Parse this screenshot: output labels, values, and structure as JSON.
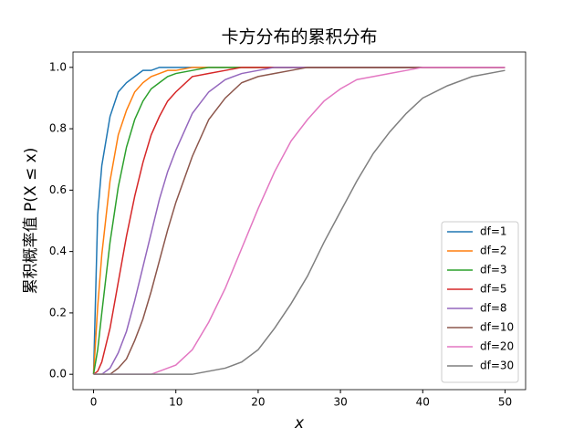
{
  "chart_data": {
    "type": "line",
    "title": "卡方分布的累积分布",
    "x_label": "x",
    "y_label": "累积概率值 P(X ≤ x)",
    "x": [
      0,
      0.5,
      1,
      2,
      3,
      4,
      5,
      6,
      7,
      8,
      9,
      10,
      12,
      14,
      16,
      18,
      20,
      22,
      24,
      26,
      28,
      30,
      32,
      34,
      36,
      38,
      40,
      43,
      46,
      50
    ],
    "series": [
      {
        "name": "df=1",
        "color": "#1f77b4",
        "values": [
          0,
          0.52,
          0.68,
          0.84,
          0.92,
          0.95,
          0.97,
          0.99,
          0.99,
          1.0,
          1.0,
          1.0,
          1.0,
          1.0,
          1.0,
          1.0,
          1.0,
          1.0,
          1.0,
          1.0,
          1.0,
          1.0,
          1.0,
          1.0,
          1.0,
          1.0,
          1.0,
          1.0,
          1.0,
          1.0
        ]
      },
      {
        "name": "df=2",
        "color": "#ff7f0e",
        "values": [
          0,
          0.22,
          0.39,
          0.63,
          0.78,
          0.86,
          0.92,
          0.95,
          0.97,
          0.98,
          0.99,
          0.99,
          1.0,
          1.0,
          1.0,
          1.0,
          1.0,
          1.0,
          1.0,
          1.0,
          1.0,
          1.0,
          1.0,
          1.0,
          1.0,
          1.0,
          1.0,
          1.0,
          1.0,
          1.0
        ]
      },
      {
        "name": "df=3",
        "color": "#2ca02c",
        "values": [
          0,
          0.08,
          0.2,
          0.43,
          0.61,
          0.74,
          0.83,
          0.89,
          0.93,
          0.95,
          0.97,
          0.98,
          0.99,
          1.0,
          1.0,
          1.0,
          1.0,
          1.0,
          1.0,
          1.0,
          1.0,
          1.0,
          1.0,
          1.0,
          1.0,
          1.0,
          1.0,
          1.0,
          1.0,
          1.0
        ]
      },
      {
        "name": "df=5",
        "color": "#d62728",
        "values": [
          0,
          0.01,
          0.04,
          0.15,
          0.3,
          0.45,
          0.58,
          0.69,
          0.78,
          0.84,
          0.89,
          0.92,
          0.97,
          0.98,
          0.99,
          1.0,
          1.0,
          1.0,
          1.0,
          1.0,
          1.0,
          1.0,
          1.0,
          1.0,
          1.0,
          1.0,
          1.0,
          1.0,
          1.0,
          1.0
        ]
      },
      {
        "name": "df=8",
        "color": "#9467bd",
        "values": [
          0,
          0,
          0,
          0.02,
          0.07,
          0.14,
          0.24,
          0.35,
          0.46,
          0.57,
          0.66,
          0.73,
          0.85,
          0.92,
          0.96,
          0.98,
          0.99,
          1.0,
          1.0,
          1.0,
          1.0,
          1.0,
          1.0,
          1.0,
          1.0,
          1.0,
          1.0,
          1.0,
          1.0,
          1.0
        ]
      },
      {
        "name": "df=10",
        "color": "#8c564b",
        "values": [
          0,
          0,
          0,
          0,
          0.02,
          0.05,
          0.11,
          0.18,
          0.27,
          0.37,
          0.47,
          0.56,
          0.71,
          0.83,
          0.9,
          0.95,
          0.97,
          0.98,
          0.99,
          1.0,
          1.0,
          1.0,
          1.0,
          1.0,
          1.0,
          1.0,
          1.0,
          1.0,
          1.0,
          1.0
        ]
      },
      {
        "name": "df=20",
        "color": "#e377c2",
        "values": [
          0,
          0,
          0,
          0,
          0,
          0,
          0,
          0,
          0,
          0.01,
          0.02,
          0.03,
          0.08,
          0.17,
          0.28,
          0.41,
          0.54,
          0.66,
          0.76,
          0.83,
          0.89,
          0.93,
          0.96,
          0.97,
          0.98,
          0.99,
          1.0,
          1.0,
          1.0,
          1.0
        ]
      },
      {
        "name": "df=30",
        "color": "#7f7f7f",
        "values": [
          0,
          0,
          0,
          0,
          0,
          0,
          0,
          0,
          0,
          0,
          0,
          0,
          0,
          0.01,
          0.02,
          0.04,
          0.08,
          0.15,
          0.23,
          0.32,
          0.43,
          0.53,
          0.63,
          0.72,
          0.79,
          0.85,
          0.9,
          0.94,
          0.97,
          0.99
        ]
      }
    ],
    "xlim": [
      -2.5,
      52.5
    ],
    "xticks": [
      0,
      10,
      20,
      30,
      40,
      50
    ],
    "ylim": [
      -0.05,
      1.05
    ],
    "yticks": [
      {
        "value": 0,
        "label": "0.0"
      },
      {
        "value": 0.2,
        "label": "0.2"
      },
      {
        "value": 0.4,
        "label": "0.4"
      },
      {
        "value": 0.6,
        "label": "0.6"
      },
      {
        "value": 0.8,
        "label": "0.8"
      },
      {
        "value": 1,
        "label": "1.0"
      }
    ],
    "grid": false,
    "legend": "lower right"
  }
}
